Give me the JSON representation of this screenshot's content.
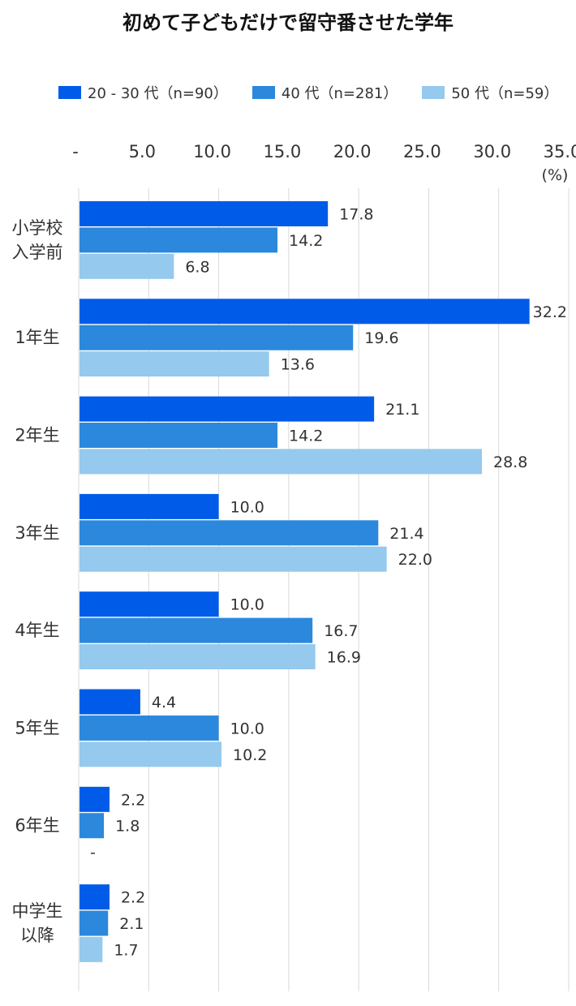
{
  "chart_data": {
    "type": "bar",
    "orientation": "horizontal",
    "title": "初めて子どもだけで留守番させた学年",
    "unit_label": "(%)",
    "x_ticks": [
      "-",
      "5.0",
      "10.0",
      "15.0",
      "20.0",
      "25.0",
      "30.0",
      "35.0"
    ],
    "xlim": [
      0,
      35
    ],
    "grid": true,
    "legend_position": "top",
    "categories": [
      [
        "小学校",
        "入学前"
      ],
      [
        "1年生"
      ],
      [
        "2年生"
      ],
      [
        "3年生"
      ],
      [
        "4年生"
      ],
      [
        "5年生"
      ],
      [
        "6年生"
      ],
      [
        "中学生",
        "以降"
      ]
    ],
    "series": [
      {
        "name": "20 - 30 代（n=90）",
        "color": "#005CE8",
        "values": [
          17.8,
          32.2,
          21.1,
          10.0,
          10.0,
          4.4,
          2.2,
          2.2
        ],
        "labels": [
          "17.8",
          "32.2",
          "21.1",
          "10.0",
          "10.0",
          "4.4",
          "2.2",
          "2.2"
        ]
      },
      {
        "name": "40 代（n=281）",
        "color": "#2B88DC",
        "values": [
          14.2,
          19.6,
          14.2,
          21.4,
          16.7,
          10.0,
          1.8,
          2.1
        ],
        "labels": [
          "14.2",
          "19.6",
          "14.2",
          "21.4",
          "16.7",
          "10.0",
          "1.8",
          "2.1"
        ]
      },
      {
        "name": "50 代（n=59）",
        "color": "#96C9EE",
        "values": [
          6.8,
          13.6,
          28.8,
          22.0,
          16.9,
          10.2,
          0,
          1.7
        ],
        "labels": [
          "6.8",
          "13.6",
          "28.8",
          "22.0",
          "16.9",
          "10.2",
          "-",
          "1.7"
        ]
      }
    ]
  }
}
